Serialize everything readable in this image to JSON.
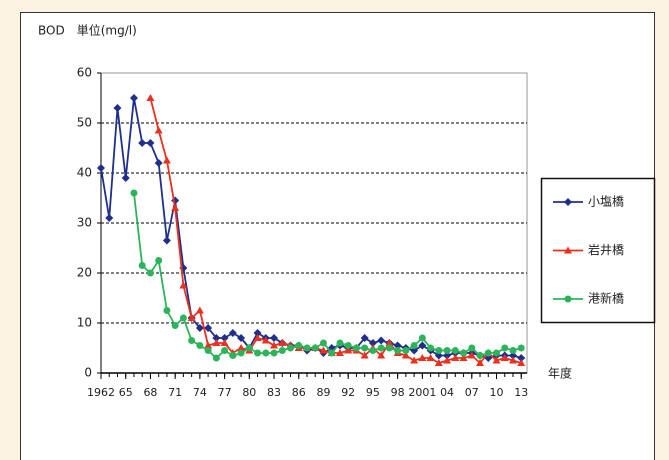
{
  "chart_data": {
    "type": "line",
    "ylabel": "BOD　単位(mg/l)",
    "xlabel": "年度",
    "x": [
      1962,
      1963,
      1964,
      1965,
      1966,
      1967,
      1968,
      1969,
      1970,
      1971,
      1972,
      1973,
      1974,
      1975,
      1976,
      1977,
      1978,
      1979,
      1980,
      1981,
      1982,
      1983,
      1984,
      1985,
      1986,
      1987,
      1988,
      1989,
      1990,
      1991,
      1992,
      1993,
      1994,
      1995,
      1996,
      1997,
      1998,
      1999,
      2000,
      2001,
      2002,
      2003,
      2004,
      2005,
      2006,
      2007,
      2008,
      2009,
      2010,
      2011,
      2012,
      2013
    ],
    "series": [
      {
        "name": "小塩橋",
        "color": "#1f2f8c",
        "marker": "diamond",
        "values": [
          41,
          31,
          53,
          39,
          55,
          46,
          46,
          42,
          26.5,
          34.5,
          21,
          11,
          9,
          9,
          7,
          7,
          8,
          7,
          5,
          8,
          7,
          7,
          6,
          5.5,
          5.5,
          4.5,
          5,
          4,
          5,
          5.5,
          5,
          5,
          7,
          6,
          6.5,
          6,
          5.5,
          5,
          4.5,
          5.5,
          4.5,
          3.5,
          3.5,
          4,
          4,
          4,
          3.5,
          3,
          3.5,
          3.5,
          3.5,
          3
        ]
      },
      {
        "name": "岩井橋",
        "color": "#e8321e",
        "marker": "triangle",
        "values": [
          null,
          null,
          null,
          null,
          null,
          null,
          55,
          48.5,
          42.5,
          33,
          17.5,
          11,
          12.5,
          5.5,
          6,
          6,
          4,
          5,
          4.5,
          7,
          6.5,
          5.5,
          6,
          5.5,
          5,
          5,
          5,
          4.5,
          4,
          4,
          4.5,
          4.5,
          3.5,
          5,
          3.5,
          6,
          4,
          3.5,
          2.5,
          3,
          3,
          2,
          2.5,
          3,
          3,
          3.5,
          2,
          4,
          2.5,
          3,
          2.5,
          2
        ]
      },
      {
        "name": "港新橋",
        "color": "#2db35a",
        "marker": "circle",
        "values": [
          null,
          null,
          null,
          null,
          36,
          21.5,
          20,
          22.5,
          12.5,
          9.5,
          11,
          6.5,
          5.5,
          4.5,
          3,
          4.5,
          3.5,
          4,
          5,
          4,
          4,
          4,
          4.5,
          5,
          5.5,
          5,
          5,
          6,
          4,
          6,
          5.5,
          5,
          5,
          4.5,
          5,
          5,
          4.5,
          4.5,
          5.5,
          7,
          5,
          4.5,
          4.5,
          4.5,
          4,
          5,
          3.5,
          4,
          4,
          5,
          4.5,
          5
        ]
      }
    ],
    "xlim": [
      1962,
      2013.7
    ],
    "xticks": [
      {
        "value": 1962,
        "label": "1962"
      },
      {
        "value": 1965,
        "label": "65"
      },
      {
        "value": 1968,
        "label": "68"
      },
      {
        "value": 1971,
        "label": "71"
      },
      {
        "value": 1974,
        "label": "74"
      },
      {
        "value": 1977,
        "label": "77"
      },
      {
        "value": 1980,
        "label": "80"
      },
      {
        "value": 1983,
        "label": "83"
      },
      {
        "value": 1986,
        "label": "86"
      },
      {
        "value": 1989,
        "label": "89"
      },
      {
        "value": 1992,
        "label": "92"
      },
      {
        "value": 1995,
        "label": "95"
      },
      {
        "value": 1998,
        "label": "98"
      },
      {
        "value": 2001,
        "label": "2001"
      },
      {
        "value": 2004,
        "label": "04"
      },
      {
        "value": 2007,
        "label": "07"
      },
      {
        "value": 2010,
        "label": "10"
      },
      {
        "value": 2013,
        "label": "13"
      }
    ],
    "ylim": [
      0,
      60
    ],
    "yticks": [
      0,
      10,
      20,
      30,
      40,
      50,
      60
    ],
    "grid": true,
    "legend": "right"
  }
}
